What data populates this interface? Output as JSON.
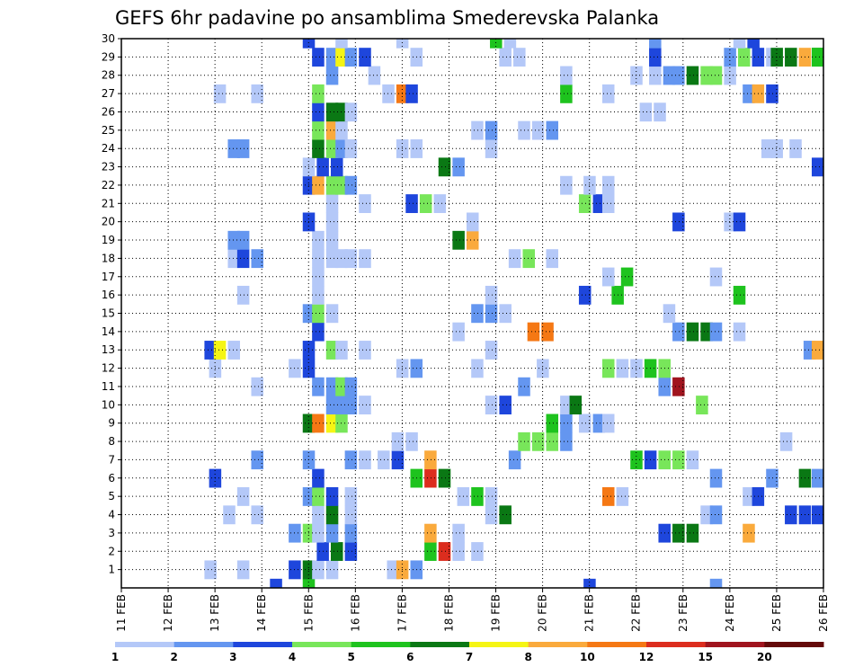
{
  "chart_data": {
    "type": "heatmap",
    "title": "GEFS 6hr padavine po ansamblima Smederevska Palanka",
    "x_tick_labels": [
      "11 FEB",
      "12 FEB",
      "13 FEB",
      "14 FEB",
      "15 FEB",
      "16 FEB",
      "17 FEB",
      "18 FEB",
      "19 FEB",
      "20 FEB",
      "21 FEB",
      "22 FEB",
      "23 FEB",
      "24 FEB",
      "25 FEB",
      "26 FEB"
    ],
    "y_tick_labels": [
      "1",
      "2",
      "3",
      "4",
      "5",
      "6",
      "7",
      "8",
      "9",
      "10",
      "11",
      "12",
      "13",
      "14",
      "15",
      "16",
      "17",
      "18",
      "19",
      "20",
      "21",
      "22",
      "23",
      "24",
      "25",
      "26",
      "27",
      "28",
      "29",
      "30"
    ],
    "xlim_days": [
      11,
      26
    ],
    "ylim_members": [
      0,
      30
    ],
    "grid": true,
    "legend_position": "bottom",
    "legend_labels": [
      "1",
      "2",
      "3",
      "4",
      "5",
      "6",
      "7",
      "8",
      "10",
      "12",
      "15",
      "20"
    ],
    "levels": [
      1,
      2,
      3,
      4,
      5,
      6,
      7,
      8,
      10,
      12,
      15,
      20
    ],
    "colors": [
      "#b4c8f8",
      "#6496f0",
      "#1e46dc",
      "#78e65a",
      "#1ec31e",
      "#0a7814",
      "#f5f514",
      "#faaa3c",
      "#f57814",
      "#dc2d1e",
      "#a0141e",
      "#640a0a"
    ],
    "cells_format": "[day, ensemble_member, precipitation_mm]",
    "cells": [
      [
        14.3,
        0,
        3
      ],
      [
        15.0,
        0,
        5
      ],
      [
        21.0,
        0,
        3
      ],
      [
        23.7,
        0,
        2
      ],
      [
        12.9,
        1,
        1
      ],
      [
        13.6,
        1,
        1
      ],
      [
        14.7,
        1,
        3
      ],
      [
        15.0,
        1,
        6
      ],
      [
        15.2,
        1,
        1
      ],
      [
        15.5,
        1,
        1
      ],
      [
        16.8,
        1,
        1
      ],
      [
        17.0,
        1,
        8
      ],
      [
        17.3,
        1,
        2
      ],
      [
        15.3,
        2,
        3
      ],
      [
        15.6,
        2,
        6
      ],
      [
        15.9,
        2,
        3
      ],
      [
        17.6,
        2,
        5
      ],
      [
        17.9,
        2,
        12
      ],
      [
        18.2,
        2,
        1
      ],
      [
        18.6,
        2,
        1
      ],
      [
        14.7,
        3,
        2
      ],
      [
        15.0,
        3,
        4
      ],
      [
        15.2,
        3,
        1
      ],
      [
        15.5,
        3,
        2
      ],
      [
        15.9,
        3,
        2
      ],
      [
        17.6,
        3,
        8
      ],
      [
        18.2,
        3,
        1
      ],
      [
        22.6,
        3,
        3
      ],
      [
        22.9,
        3,
        6
      ],
      [
        23.2,
        3,
        6
      ],
      [
        24.4,
        3,
        8
      ],
      [
        13.3,
        4,
        1
      ],
      [
        13.9,
        4,
        1
      ],
      [
        15.2,
        4,
        1
      ],
      [
        15.5,
        4,
        6
      ],
      [
        15.9,
        4,
        1
      ],
      [
        18.9,
        4,
        1
      ],
      [
        19.2,
        4,
        6
      ],
      [
        23.5,
        4,
        1
      ],
      [
        23.7,
        4,
        2
      ],
      [
        25.3,
        4,
        3
      ],
      [
        25.6,
        4,
        3
      ],
      [
        25.9,
        4,
        3
      ],
      [
        13.6,
        5,
        1
      ],
      [
        15.0,
        5,
        2
      ],
      [
        15.2,
        5,
        4
      ],
      [
        15.5,
        5,
        3
      ],
      [
        15.9,
        5,
        1
      ],
      [
        18.3,
        5,
        1
      ],
      [
        18.6,
        5,
        5
      ],
      [
        18.9,
        5,
        1
      ],
      [
        21.4,
        5,
        10
      ],
      [
        21.7,
        5,
        1
      ],
      [
        24.4,
        5,
        1
      ],
      [
        24.6,
        5,
        3
      ],
      [
        13.0,
        6,
        3
      ],
      [
        15.2,
        6,
        3
      ],
      [
        17.3,
        6,
        5
      ],
      [
        17.6,
        6,
        12
      ],
      [
        17.9,
        6,
        6
      ],
      [
        23.7,
        6,
        2
      ],
      [
        24.9,
        6,
        2
      ],
      [
        25.6,
        6,
        6
      ],
      [
        25.9,
        6,
        2
      ],
      [
        13.9,
        7,
        2
      ],
      [
        15.0,
        7,
        2
      ],
      [
        15.9,
        7,
        2
      ],
      [
        16.2,
        7,
        1
      ],
      [
        16.6,
        7,
        1
      ],
      [
        16.9,
        7,
        3
      ],
      [
        17.6,
        7,
        8
      ],
      [
        19.4,
        7,
        2
      ],
      [
        22.0,
        7,
        5
      ],
      [
        22.3,
        7,
        3
      ],
      [
        22.6,
        7,
        4
      ],
      [
        22.9,
        7,
        4
      ],
      [
        23.2,
        7,
        1
      ],
      [
        16.9,
        8,
        1
      ],
      [
        17.2,
        8,
        1
      ],
      [
        19.6,
        8,
        4
      ],
      [
        19.9,
        8,
        4
      ],
      [
        20.2,
        8,
        4
      ],
      [
        20.5,
        8,
        2
      ],
      [
        25.2,
        8,
        1
      ],
      [
        15.0,
        9,
        6
      ],
      [
        15.2,
        9,
        10
      ],
      [
        15.5,
        9,
        7
      ],
      [
        15.7,
        9,
        4
      ],
      [
        20.2,
        9,
        5
      ],
      [
        20.5,
        9,
        2
      ],
      [
        20.9,
        9,
        1
      ],
      [
        21.2,
        9,
        2
      ],
      [
        21.4,
        9,
        1
      ],
      [
        15.5,
        10,
        2
      ],
      [
        15.7,
        10,
        2
      ],
      [
        15.9,
        10,
        2
      ],
      [
        16.2,
        10,
        1
      ],
      [
        18.9,
        10,
        1
      ],
      [
        19.2,
        10,
        3
      ],
      [
        20.5,
        10,
        1
      ],
      [
        20.7,
        10,
        6
      ],
      [
        23.4,
        10,
        4
      ],
      [
        13.9,
        11,
        1
      ],
      [
        15.2,
        11,
        2
      ],
      [
        15.5,
        11,
        2
      ],
      [
        15.7,
        11,
        4
      ],
      [
        15.9,
        11,
        2
      ],
      [
        19.6,
        11,
        2
      ],
      [
        22.6,
        11,
        2
      ],
      [
        22.9,
        11,
        15
      ],
      [
        13.0,
        12,
        1
      ],
      [
        14.7,
        12,
        1
      ],
      [
        15.0,
        12,
        3
      ],
      [
        17.0,
        12,
        1
      ],
      [
        17.3,
        12,
        2
      ],
      [
        18.6,
        12,
        1
      ],
      [
        20.0,
        12,
        1
      ],
      [
        21.4,
        12,
        4
      ],
      [
        21.7,
        12,
        1
      ],
      [
        22.0,
        12,
        1
      ],
      [
        22.3,
        12,
        5
      ],
      [
        22.6,
        12,
        4
      ],
      [
        12.9,
        13,
        3
      ],
      [
        13.1,
        13,
        7
      ],
      [
        13.4,
        13,
        1
      ],
      [
        15.0,
        13,
        3
      ],
      [
        15.5,
        13,
        4
      ],
      [
        15.7,
        13,
        1
      ],
      [
        16.2,
        13,
        1
      ],
      [
        18.9,
        13,
        1
      ],
      [
        25.7,
        13,
        2
      ],
      [
        26.0,
        13,
        8
      ],
      [
        15.2,
        14,
        3
      ],
      [
        18.2,
        14,
        1
      ],
      [
        19.8,
        14,
        10
      ],
      [
        20.1,
        14,
        10
      ],
      [
        22.9,
        14,
        2
      ],
      [
        23.2,
        14,
        6
      ],
      [
        23.5,
        14,
        6
      ],
      [
        23.7,
        14,
        2
      ],
      [
        24.2,
        14,
        1
      ],
      [
        15.0,
        15,
        2
      ],
      [
        15.2,
        15,
        4
      ],
      [
        15.5,
        15,
        1
      ],
      [
        18.6,
        15,
        2
      ],
      [
        18.9,
        15,
        2
      ],
      [
        19.2,
        15,
        1
      ],
      [
        22.7,
        15,
        1
      ],
      [
        13.6,
        16,
        1
      ],
      [
        15.2,
        16,
        1
      ],
      [
        18.9,
        16,
        1
      ],
      [
        20.9,
        16,
        3
      ],
      [
        21.6,
        16,
        5
      ],
      [
        24.2,
        16,
        5
      ],
      [
        15.2,
        17,
        1
      ],
      [
        21.4,
        17,
        1
      ],
      [
        21.8,
        17,
        5
      ],
      [
        23.7,
        17,
        1
      ],
      [
        13.4,
        18,
        1
      ],
      [
        13.6,
        18,
        3
      ],
      [
        13.9,
        18,
        2
      ],
      [
        15.2,
        18,
        1
      ],
      [
        15.5,
        18,
        1
      ],
      [
        15.7,
        18,
        1
      ],
      [
        15.9,
        18,
        1
      ],
      [
        16.2,
        18,
        1
      ],
      [
        19.4,
        18,
        1
      ],
      [
        19.7,
        18,
        4
      ],
      [
        20.2,
        18,
        1
      ],
      [
        13.4,
        19,
        2
      ],
      [
        13.6,
        19,
        2
      ],
      [
        15.2,
        19,
        1
      ],
      [
        15.5,
        19,
        1
      ],
      [
        18.2,
        19,
        6
      ],
      [
        18.5,
        19,
        8
      ],
      [
        15.0,
        20,
        3
      ],
      [
        15.5,
        20,
        1
      ],
      [
        18.5,
        20,
        1
      ],
      [
        22.9,
        20,
        3
      ],
      [
        24.0,
        20,
        1
      ],
      [
        24.2,
        20,
        3
      ],
      [
        15.5,
        21,
        1
      ],
      [
        16.2,
        21,
        1
      ],
      [
        17.2,
        21,
        3
      ],
      [
        17.5,
        21,
        4
      ],
      [
        17.8,
        21,
        1
      ],
      [
        20.9,
        21,
        4
      ],
      [
        21.2,
        21,
        3
      ],
      [
        21.4,
        21,
        1
      ],
      [
        15.0,
        22,
        3
      ],
      [
        15.2,
        22,
        8
      ],
      [
        15.5,
        22,
        4
      ],
      [
        15.7,
        22,
        4
      ],
      [
        15.9,
        22,
        2
      ],
      [
        20.5,
        22,
        1
      ],
      [
        21.0,
        22,
        1
      ],
      [
        21.4,
        22,
        1
      ],
      [
        15.0,
        23,
        1
      ],
      [
        15.3,
        23,
        3
      ],
      [
        15.6,
        23,
        3
      ],
      [
        17.9,
        23,
        6
      ],
      [
        18.2,
        23,
        2
      ],
      [
        25.9,
        23,
        3
      ],
      [
        13.4,
        24,
        2
      ],
      [
        13.6,
        24,
        2
      ],
      [
        15.2,
        24,
        6
      ],
      [
        15.5,
        24,
        4
      ],
      [
        15.7,
        24,
        2
      ],
      [
        15.9,
        24,
        1
      ],
      [
        17.0,
        24,
        1
      ],
      [
        17.3,
        24,
        1
      ],
      [
        18.9,
        24,
        1
      ],
      [
        24.8,
        24,
        1
      ],
      [
        25.0,
        24,
        1
      ],
      [
        25.4,
        24,
        1
      ],
      [
        15.2,
        25,
        4
      ],
      [
        15.5,
        25,
        8
      ],
      [
        15.7,
        25,
        1
      ],
      [
        18.6,
        25,
        1
      ],
      [
        18.9,
        25,
        2
      ],
      [
        19.6,
        25,
        1
      ],
      [
        19.9,
        25,
        1
      ],
      [
        20.2,
        25,
        2
      ],
      [
        15.2,
        26,
        3
      ],
      [
        15.5,
        26,
        6
      ],
      [
        15.7,
        26,
        6
      ],
      [
        15.9,
        26,
        1
      ],
      [
        22.2,
        26,
        1
      ],
      [
        22.5,
        26,
        1
      ],
      [
        13.1,
        27,
        1
      ],
      [
        13.9,
        27,
        1
      ],
      [
        15.2,
        27,
        4
      ],
      [
        16.7,
        27,
        1
      ],
      [
        17.0,
        27,
        10
      ],
      [
        17.2,
        27,
        3
      ],
      [
        20.5,
        27,
        5
      ],
      [
        21.4,
        27,
        1
      ],
      [
        24.4,
        27,
        2
      ],
      [
        24.6,
        27,
        8
      ],
      [
        24.9,
        27,
        3
      ],
      [
        15.5,
        28,
        2
      ],
      [
        16.4,
        28,
        1
      ],
      [
        20.5,
        28,
        1
      ],
      [
        22.0,
        28,
        1
      ],
      [
        22.4,
        28,
        1
      ],
      [
        22.7,
        28,
        2
      ],
      [
        22.9,
        28,
        2
      ],
      [
        23.2,
        28,
        6
      ],
      [
        23.5,
        28,
        4
      ],
      [
        23.7,
        28,
        4
      ],
      [
        24.0,
        28,
        1
      ],
      [
        15.2,
        29,
        3
      ],
      [
        15.5,
        29,
        2
      ],
      [
        15.7,
        29,
        7
      ],
      [
        15.9,
        29,
        2
      ],
      [
        16.2,
        29,
        3
      ],
      [
        17.3,
        29,
        1
      ],
      [
        19.2,
        29,
        1
      ],
      [
        19.5,
        29,
        1
      ],
      [
        22.4,
        29,
        3
      ],
      [
        24.0,
        29,
        2
      ],
      [
        24.3,
        29,
        4
      ],
      [
        24.6,
        29,
        3
      ],
      [
        24.9,
        29,
        1
      ],
      [
        25.0,
        29,
        6
      ],
      [
        25.3,
        29,
        6
      ],
      [
        25.6,
        29,
        8
      ],
      [
        25.9,
        29,
        6
      ],
      [
        26.0,
        29,
        5
      ],
      [
        15.0,
        30,
        3
      ],
      [
        15.7,
        30,
        1
      ],
      [
        17.0,
        30,
        1
      ],
      [
        19.0,
        30,
        5
      ],
      [
        19.3,
        30,
        1
      ],
      [
        22.4,
        30,
        2
      ],
      [
        24.2,
        30,
        1
      ],
      [
        24.5,
        30,
        3
      ]
    ]
  }
}
